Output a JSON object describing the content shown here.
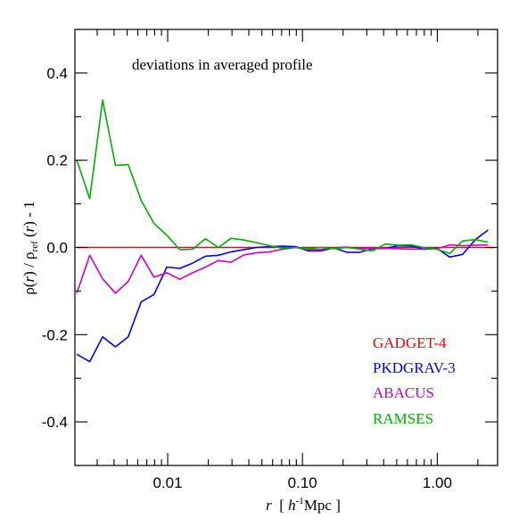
{
  "chart_data": {
    "type": "line",
    "title": "deviations in averaged profile",
    "xlabel": {
      "italic": "r",
      "pre": "  [ ",
      "h": "h",
      "exp": "-1",
      "unit": "Mpc ]"
    },
    "ylabel": {
      "rho": "ρ(",
      "r1": "r",
      "mid": ") / ρ",
      "sub": "ref",
      "mid2": " (",
      "r2": "r",
      "end": ") - 1"
    },
    "xscale": "log",
    "xlim": [
      0.00205,
      2.8
    ],
    "ylim": [
      -0.5,
      0.5
    ],
    "xticks": [
      {
        "value": 0.01,
        "label": "0.01"
      },
      {
        "value": 0.1,
        "label": "0.10"
      },
      {
        "value": 1.0,
        "label": "1.00"
      }
    ],
    "yticks": [
      {
        "value": 0.4,
        "label": "0.4"
      },
      {
        "value": 0.2,
        "label": "0.2"
      },
      {
        "value": 0.0,
        "label": "0.0"
      },
      {
        "value": -0.2,
        "label": "-0.2"
      },
      {
        "value": -0.4,
        "label": "-0.4"
      }
    ],
    "legend_position": "bottom-right",
    "series": [
      {
        "name": "GADGET-4",
        "color": "#ff0000",
        "x": [
          0.00212,
          2.7
        ],
        "y": [
          0.0,
          0.0
        ]
      },
      {
        "name": "PKDGRAV-3",
        "color": "#0000ff",
        "x": [
          0.00212,
          0.00264,
          0.00329,
          0.0041,
          0.0051,
          0.00636,
          0.00792,
          0.00986,
          0.01228,
          0.0153,
          0.01905,
          0.02373,
          0.02955,
          0.03681,
          0.04585,
          0.05711,
          0.07113,
          0.0886,
          0.1104,
          0.1375,
          0.1712,
          0.2133,
          0.2656,
          0.3309,
          0.4121,
          0.5133,
          0.6393,
          0.7963,
          0.9918,
          1.235,
          1.539,
          1.916,
          2.387
        ],
        "y": [
          -0.245,
          -0.262,
          -0.205,
          -0.228,
          -0.205,
          -0.125,
          -0.108,
          -0.045,
          -0.048,
          -0.036,
          -0.02,
          -0.018,
          -0.01,
          -0.005,
          0.0,
          0.002,
          0.003,
          0.002,
          -0.008,
          -0.008,
          -0.001,
          -0.011,
          -0.011,
          -0.003,
          -0.002,
          0.004,
          0.003,
          -0.004,
          -0.002,
          -0.022,
          -0.016,
          0.018,
          0.04
        ]
      },
      {
        "name": "ABACUS",
        "color": "#cc00cc",
        "x": [
          0.00212,
          0.00264,
          0.00329,
          0.0041,
          0.0051,
          0.00636,
          0.00792,
          0.00986,
          0.01228,
          0.0153,
          0.01905,
          0.02373,
          0.02955,
          0.03681,
          0.04585,
          0.05711,
          0.07113,
          0.0886,
          0.1104,
          0.1375,
          0.1712,
          0.2133,
          0.2656,
          0.3309,
          0.4121,
          0.5133,
          0.6393,
          0.7963,
          0.9918,
          1.235,
          1.539,
          1.916,
          2.387
        ],
        "y": [
          -0.105,
          -0.018,
          -0.072,
          -0.105,
          -0.078,
          -0.018,
          -0.068,
          -0.058,
          -0.073,
          -0.058,
          -0.045,
          -0.03,
          -0.034,
          -0.017,
          -0.012,
          -0.01,
          -0.004,
          0.0,
          -0.005,
          -0.005,
          -0.001,
          0.001,
          -0.003,
          -0.001,
          -0.002,
          -0.003,
          -0.004,
          -0.004,
          -0.003,
          0.006,
          0.004,
          0.005,
          0.006
        ]
      },
      {
        "name": "RAMSES",
        "color": "#00b000",
        "x": [
          0.00212,
          0.00264,
          0.00329,
          0.0041,
          0.0051,
          0.00636,
          0.00792,
          0.00986,
          0.01228,
          0.0153,
          0.01905,
          0.02373,
          0.02955,
          0.03681,
          0.04585,
          0.05711,
          0.07113,
          0.0886,
          0.1104,
          0.1375,
          0.1712,
          0.2133,
          0.2656,
          0.3309,
          0.4121,
          0.5133,
          0.6393,
          0.7963,
          0.9918,
          1.235,
          1.539,
          1.916,
          2.387
        ],
        "y": [
          0.2,
          0.112,
          0.338,
          0.188,
          0.19,
          0.108,
          0.055,
          0.028,
          -0.005,
          -0.004,
          0.02,
          0.0,
          0.021,
          0.017,
          0.011,
          0.004,
          -0.002,
          0.0,
          -0.003,
          0.0,
          -0.003,
          0.0,
          -0.004,
          -0.008,
          0.008,
          0.005,
          0.006,
          0.0,
          -0.004,
          -0.014,
          0.015,
          0.018,
          0.012
        ]
      }
    ]
  }
}
